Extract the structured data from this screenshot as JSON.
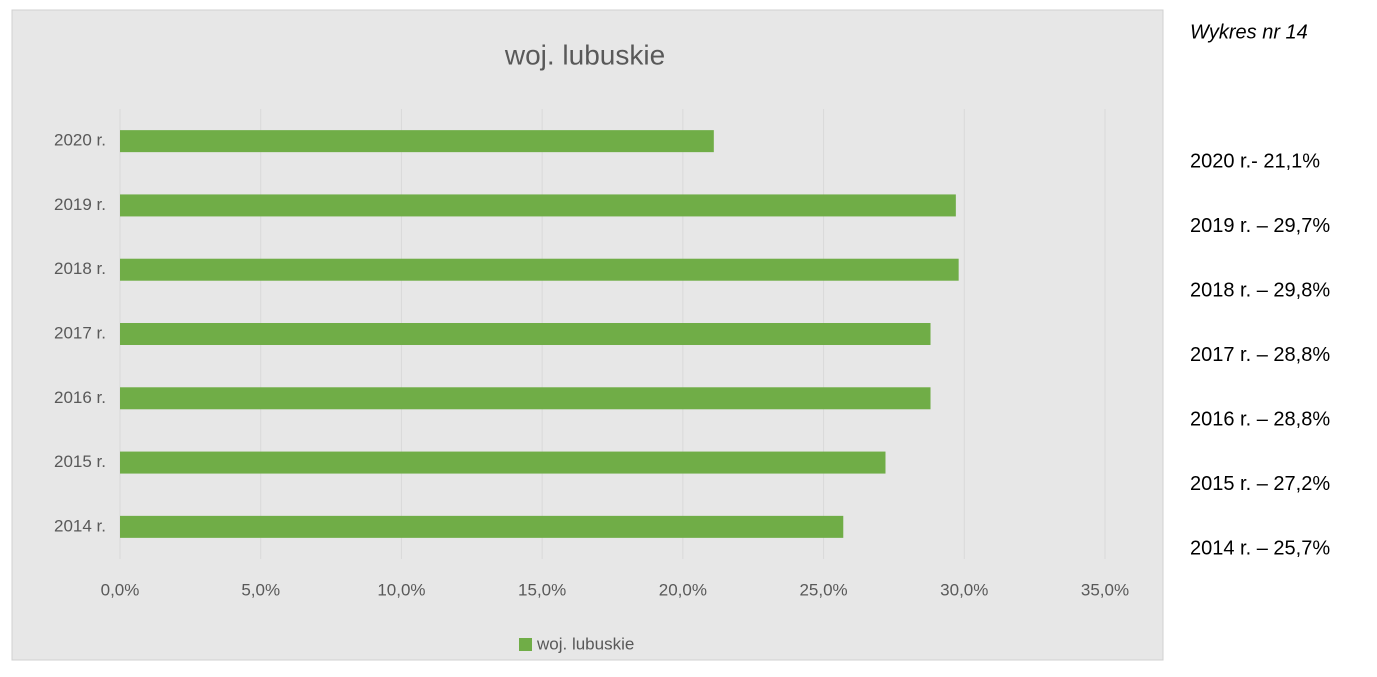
{
  "chart_data": {
    "type": "hbar",
    "title": "woj. lubuskie",
    "categories": [
      "2014 r.",
      "2015 r.",
      "2016 r.",
      "2017 r.",
      "2018 r.",
      "2019 r.",
      "2020 r."
    ],
    "series": [
      {
        "name": "woj. lubuskie",
        "color": "#70ad47",
        "values": [
          25.7,
          27.2,
          28.8,
          28.8,
          29.8,
          29.7,
          21.1
        ]
      }
    ],
    "xlim": [
      0,
      35
    ],
    "xticks": [
      {
        "value": 0,
        "label": "0,0%"
      },
      {
        "value": 5,
        "label": "5,0%"
      },
      {
        "value": 10,
        "label": "10,0%"
      },
      {
        "value": 15,
        "label": "15,0%"
      },
      {
        "value": 20,
        "label": "20,0%"
      },
      {
        "value": 25,
        "label": "25,0%"
      },
      {
        "value": 30,
        "label": "30,0%"
      },
      {
        "value": 35,
        "label": "35,0%"
      }
    ],
    "grid": true,
    "legend": "bottom"
  },
  "notes": {
    "caption": "Wykres nr 14",
    "lines": [
      "2020 r.- 21,1%",
      "2019 r. – 29,7%",
      "2018 r. – 29,8%",
      "2017 r. – 28,8%",
      "2016 r. – 28,8%",
      "2015 r. – 27,2%",
      "2014 r. – 25,7%"
    ]
  }
}
